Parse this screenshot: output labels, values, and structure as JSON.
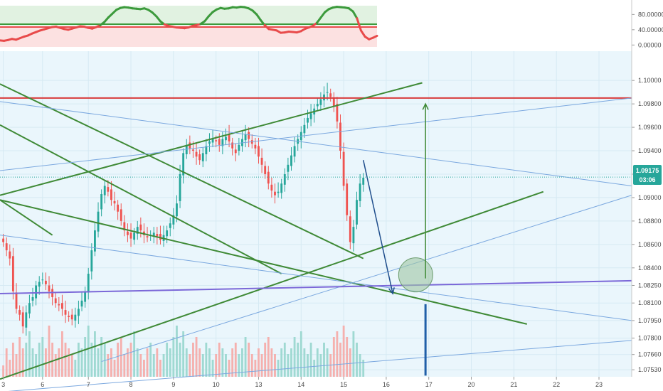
{
  "chart_data": [
    {
      "type": "line",
      "panel": "oscillator",
      "y_ticks": [
        "80.00000",
        "40.00000",
        "0.00000"
      ],
      "y_tick_values": [
        80,
        40,
        0
      ],
      "ylim": [
        -5,
        103
      ],
      "overbought_level": 55,
      "oversold_level": 45,
      "colors": {
        "up": "#3c9a3c",
        "down": "#e84a4a",
        "zone_up": "#d9efd9",
        "zone_down": "#fbd9d9"
      },
      "series": [
        {
          "x": [
            0,
            1,
            2,
            3,
            4,
            5,
            6,
            7,
            8,
            9,
            10,
            11,
            12,
            13,
            14,
            15,
            16,
            17,
            18,
            19,
            20,
            21,
            22,
            23,
            24,
            25,
            26,
            27,
            28,
            29,
            30,
            31,
            32,
            33,
            34,
            35,
            36,
            37,
            38,
            39,
            40,
            41,
            42,
            43,
            44,
            45,
            46,
            47,
            48,
            49,
            50,
            51,
            52,
            53,
            54,
            55,
            56,
            57,
            58,
            59,
            60,
            61,
            62,
            63,
            64,
            65,
            66,
            67,
            68,
            69,
            70,
            71,
            72,
            73,
            74,
            75,
            76,
            77,
            78,
            79,
            80,
            81,
            82,
            83,
            84,
            85,
            86,
            87,
            88,
            89
          ],
          "values": [
            12,
            11,
            13,
            16,
            14,
            18,
            22,
            25,
            30,
            34,
            38,
            41,
            44,
            47,
            48,
            45,
            42,
            40,
            43,
            46,
            49,
            48,
            45,
            43,
            47,
            52,
            60,
            72,
            82,
            92,
            97,
            99,
            98,
            96,
            95,
            94,
            96,
            92,
            85,
            75,
            62,
            54,
            50,
            48,
            46,
            45,
            44,
            46,
            50,
            52,
            55,
            62,
            75,
            86,
            93,
            97,
            95,
            96,
            99,
            98,
            100,
            99,
            96,
            90,
            80,
            65,
            52,
            42,
            40,
            38,
            32,
            33,
            35,
            34,
            33,
            36,
            42,
            46,
            50,
            58,
            72,
            86,
            94,
            98,
            100,
            99,
            98,
            96,
            88,
            70
          ],
          "tail": [
            38,
            22,
            15,
            19,
            24
          ]
        }
      ]
    },
    {
      "type": "candlestick",
      "panel": "price",
      "x_ticks": [
        "3",
        "6",
        "7",
        "8",
        "9",
        "10",
        "13",
        "14",
        "15",
        "16",
        "17",
        "20",
        "21",
        "22",
        "23"
      ],
      "x_tick_positions": [
        0,
        12,
        26,
        39,
        52,
        65,
        78,
        91,
        104,
        117,
        130,
        143,
        156,
        169,
        182
      ],
      "y_ticks": [
        "1.10000",
        "1.09800",
        "1.09600",
        "1.09400",
        "1.09200",
        "1.09000",
        "1.08800",
        "1.08600",
        "1.08400",
        "1.08250",
        "1.08100",
        "1.07950",
        "1.07800",
        "1.07660",
        "1.07530"
      ],
      "y_tick_values": [
        1.1,
        1.098,
        1.096,
        1.094,
        1.092,
        1.09,
        1.088,
        1.086,
        1.084,
        1.0825,
        1.081,
        1.0795,
        1.078,
        1.0766,
        1.0753
      ],
      "ylim": [
        1.0747,
        1.1025
      ],
      "xlim": [
        -1,
        192
      ],
      "current_price": "1.09175",
      "countdown": "03:06",
      "colors": {
        "up": "#26a69a",
        "down": "#ef5350",
        "volume_up": "#9fd9d2",
        "volume_down": "#f5b0ae"
      },
      "closes": [
        1.0862,
        1.0855,
        1.0848,
        1.082,
        1.0805,
        1.08,
        1.079,
        1.0802,
        1.081,
        1.0815,
        1.0825,
        1.0828,
        1.083,
        1.0826,
        1.082,
        1.0815,
        1.081,
        1.0808,
        1.0805,
        1.08,
        1.0798,
        1.0796,
        1.08,
        1.0805,
        1.0812,
        1.082,
        1.0835,
        1.0855,
        1.0872,
        1.0888,
        1.0903,
        1.091,
        1.0905,
        1.0898,
        1.0895,
        1.0888,
        1.088,
        1.0872,
        1.0868,
        1.0865,
        1.087,
        1.0875,
        1.0872,
        1.0868,
        1.0866,
        1.0868,
        1.087,
        1.0867,
        1.0864,
        1.0868,
        1.0872,
        1.0878,
        1.0885,
        1.0895,
        1.092,
        1.0938,
        1.0945,
        1.0942,
        1.094,
        1.0935,
        1.0932,
        1.0938,
        1.0944,
        1.0948,
        1.095,
        1.0948,
        1.0945,
        1.095,
        1.0952,
        1.0948,
        1.0942,
        1.0938,
        1.0945,
        1.095,
        1.0954,
        1.095,
        1.0946,
        1.0942,
        1.0935,
        1.0928,
        1.092,
        1.0912,
        1.0906,
        1.0902,
        1.0905,
        1.0912,
        1.092,
        1.0928,
        1.0936,
        1.0944,
        1.095,
        1.0956,
        1.0962,
        1.0968,
        1.0972,
        1.0976,
        1.098,
        1.0984,
        1.0988,
        1.099,
        1.0986,
        1.0978,
        1.0965,
        1.094,
        1.091,
        1.0885,
        1.0862,
        1.0875,
        1.0898,
        1.0912,
        1.0917
      ],
      "volumes": [
        2,
        5,
        3,
        6,
        4,
        7,
        5,
        6,
        8,
        5,
        4,
        6,
        7,
        5,
        9,
        6,
        4,
        5,
        8,
        6,
        5,
        4,
        3,
        6,
        5,
        7,
        9,
        6,
        8,
        5,
        7,
        6,
        4,
        5,
        3,
        6,
        7,
        4,
        5,
        6,
        8,
        5,
        4,
        3,
        5,
        6,
        4,
        5,
        3,
        4,
        6,
        5,
        7,
        9,
        6,
        8,
        5,
        4,
        6,
        7,
        5,
        4,
        6,
        5,
        3,
        4,
        6,
        5,
        4,
        3,
        5,
        6,
        4,
        5,
        7,
        6,
        4,
        3,
        5,
        4,
        6,
        7,
        5,
        4,
        3,
        5,
        6,
        4,
        5,
        7,
        6,
        8,
        5,
        4,
        6,
        3,
        5,
        4,
        6,
        5,
        4,
        7,
        8,
        6,
        9,
        7,
        5,
        8,
        6,
        4,
        3
      ],
      "resistance_level": 1.0985,
      "support_level": 1.0824,
      "trendlines": [
        {
          "x1": -1,
          "y1": 1.0902,
          "x2": 128,
          "y2": 1.0998,
          "color": "green"
        },
        {
          "x1": -1,
          "y1": 1.0997,
          "x2": 110,
          "y2": 1.0848,
          "color": "green"
        },
        {
          "x1": -1,
          "y1": 1.0962,
          "x2": 85,
          "y2": 1.0835,
          "color": "green"
        },
        {
          "x1": -1,
          "y1": 1.0745,
          "x2": 165,
          "y2": 1.0905,
          "color": "green"
        },
        {
          "x1": -1,
          "y1": 1.0898,
          "x2": 15,
          "y2": 1.0868,
          "color": "green"
        },
        {
          "x1": -1,
          "y1": 1.0898,
          "x2": 160,
          "y2": 1.0792,
          "color": "green"
        },
        {
          "x1": -1,
          "y1": 1.0923,
          "x2": 192,
          "y2": 1.0985,
          "color": "blue"
        },
        {
          "x1": -1,
          "y1": 1.0982,
          "x2": 192,
          "y2": 1.091,
          "color": "blue"
        },
        {
          "x1": -1,
          "y1": 1.0868,
          "x2": 192,
          "y2": 1.0795,
          "color": "blue"
        },
        {
          "x1": -1,
          "y1": 1.0734,
          "x2": 192,
          "y2": 1.0778,
          "color": "blue"
        },
        {
          "x1": 30,
          "y1": 1.076,
          "x2": 192,
          "y2": 1.0902,
          "color": "blue"
        },
        {
          "x1": -1,
          "y1": 1.0818,
          "x2": 192,
          "y2": 1.0829,
          "color": "purple"
        }
      ],
      "arrows": [
        {
          "x1": 110,
          "y1": 1.0932,
          "x2": 119,
          "y2": 1.0818,
          "color": "navy"
        },
        {
          "x1": 129,
          "y1": 1.0831,
          "x2": 129,
          "y2": 1.098,
          "color": "green"
        }
      ],
      "target_circle": {
        "x": 126,
        "y": 1.0834
      },
      "time_marker": {
        "x": 129,
        "y1": 1.0809,
        "y2": 1.0748
      }
    }
  ]
}
